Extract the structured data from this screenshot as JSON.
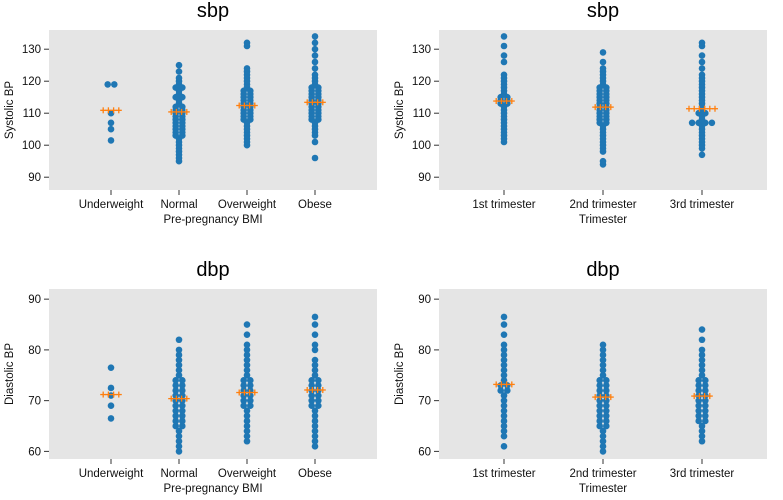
{
  "colors": {
    "panel_bg": "#e5e5e5",
    "dots": "#1f77b4",
    "mean_marker": "#ff7f0e",
    "text": "#000000"
  },
  "chart_data": [
    {
      "id": "sbp-bmi",
      "type": "swarm",
      "title": "sbp",
      "xlabel": "Pre-pregnancy BMI",
      "ylabel": "Systolic BP",
      "categories": [
        "Underweight",
        "Normal",
        "Overweight",
        "Obese"
      ],
      "ylim": [
        86,
        136
      ],
      "yticks": [
        90,
        100,
        110,
        120,
        130
      ],
      "mean_markers": [
        110.9,
        110.4,
        112.4,
        113.4
      ],
      "values": [
        [
          119,
          119,
          110,
          107,
          105,
          101.5
        ],
        [
          125,
          123,
          121,
          120,
          119,
          118,
          118,
          117,
          116,
          115,
          115,
          114,
          113,
          112,
          112,
          111,
          111,
          110,
          110,
          109,
          109,
          108,
          108,
          107,
          107,
          106,
          106,
          105,
          105,
          104,
          104,
          103,
          103,
          102,
          101,
          100,
          99,
          98,
          97,
          96,
          95
        ],
        [
          132,
          131,
          124,
          123,
          122,
          121,
          120,
          119,
          118,
          117,
          117,
          116,
          116,
          115,
          115,
          114,
          114,
          113,
          113,
          112,
          112,
          111,
          111,
          110,
          110,
          109,
          109,
          108,
          108,
          107,
          106,
          105,
          104,
          103,
          102,
          101,
          100
        ],
        [
          134,
          132,
          130,
          128,
          126,
          124,
          122,
          121,
          120,
          119,
          118,
          118,
          117,
          117,
          116,
          116,
          115,
          115,
          114,
          114,
          113,
          113,
          112,
          112,
          111,
          111,
          110,
          110,
          109,
          109,
          108,
          108,
          107,
          106,
          105,
          104,
          103,
          101,
          96
        ]
      ]
    },
    {
      "id": "sbp-tri",
      "type": "swarm",
      "title": "sbp",
      "xlabel": "Trimester",
      "ylabel": "Systolic BP",
      "categories": [
        "1st trimester",
        "2nd trimester",
        "3rd trimester"
      ],
      "ylim": [
        86,
        136
      ],
      "yticks": [
        90,
        100,
        110,
        120,
        130
      ],
      "mean_markers": [
        113.8,
        111.9,
        111.4
      ],
      "values": [
        [
          134,
          131,
          128,
          126,
          122,
          121,
          120,
          119,
          118,
          117,
          116,
          115,
          115,
          114,
          114,
          113,
          113,
          112,
          111,
          110,
          109,
          108,
          107,
          106,
          105,
          104,
          103,
          102,
          101
        ],
        [
          129,
          126,
          124,
          123,
          122,
          121,
          120,
          119,
          118,
          118,
          117,
          117,
          116,
          116,
          115,
          115,
          114,
          114,
          113,
          113,
          112,
          112,
          111,
          111,
          110,
          110,
          109,
          109,
          108,
          108,
          107,
          107,
          106,
          105,
          104,
          103,
          102,
          101,
          100,
          99,
          98,
          95,
          94
        ],
        [
          132,
          131,
          128,
          126,
          124,
          122,
          121,
          120,
          119,
          118,
          117,
          116,
          115,
          114,
          113,
          112,
          111,
          110,
          110,
          109,
          108,
          107,
          107,
          107,
          107,
          106,
          105,
          104,
          103,
          102,
          101,
          100,
          99,
          97
        ]
      ]
    },
    {
      "id": "dbp-bmi",
      "type": "swarm",
      "title": "dbp",
      "xlabel": "Pre-pregnancy BMI",
      "ylabel": "Diastolic BP",
      "categories": [
        "Underweight",
        "Normal",
        "Overweight",
        "Obese"
      ],
      "ylim": [
        58.5,
        92
      ],
      "yticks": [
        60,
        70,
        80,
        90
      ],
      "mean_markers": [
        71.2,
        70.4,
        71.6,
        72.1
      ],
      "values": [
        [
          76.5,
          72.5,
          71,
          69,
          66.5
        ],
        [
          82,
          80,
          79,
          78,
          77,
          76,
          75,
          74,
          74,
          73,
          73,
          72,
          72,
          71,
          71,
          70,
          70,
          69,
          69,
          68,
          68,
          67,
          67,
          66,
          66,
          65,
          65,
          64,
          63,
          62,
          61,
          60
        ],
        [
          85,
          83,
          81,
          80,
          79,
          78,
          77,
          76,
          75,
          74,
          74,
          73,
          73,
          72,
          72,
          71,
          71,
          70,
          70,
          69,
          69,
          68,
          67,
          66,
          65,
          64,
          63,
          62
        ],
        [
          86.5,
          85,
          83,
          81,
          80,
          78,
          77,
          76,
          75,
          74,
          74,
          73,
          73,
          72,
          72,
          71,
          71,
          70,
          70,
          69,
          69,
          68,
          67,
          66,
          65,
          64,
          63,
          62,
          61
        ]
      ]
    },
    {
      "id": "dbp-tri",
      "type": "swarm",
      "title": "dbp",
      "xlabel": "Trimester",
      "ylabel": "Diastolic BP",
      "categories": [
        "1st trimester",
        "2nd trimester",
        "3rd trimester"
      ],
      "ylim": [
        58.5,
        92
      ],
      "yticks": [
        60,
        70,
        80,
        90
      ],
      "mean_markers": [
        73.2,
        70.7,
        70.9
      ],
      "values": [
        [
          86.5,
          85,
          83,
          81,
          80,
          79,
          78,
          77,
          76,
          75,
          74,
          73,
          73,
          72,
          72,
          71,
          70,
          69,
          68,
          67,
          66,
          65,
          64,
          63,
          61
        ],
        [
          81,
          80,
          79,
          78,
          77,
          76,
          75,
          74,
          74,
          73,
          73,
          72,
          72,
          71,
          71,
          70,
          70,
          69,
          69,
          68,
          68,
          67,
          67,
          66,
          66,
          65,
          65,
          64,
          63,
          62,
          61,
          60
        ],
        [
          84,
          82,
          80,
          79,
          78,
          77,
          76,
          75,
          74,
          74,
          73,
          73,
          72,
          72,
          71,
          71,
          70,
          70,
          69,
          69,
          68,
          68,
          67,
          67,
          66,
          66,
          65,
          64,
          63,
          62
        ]
      ]
    }
  ]
}
